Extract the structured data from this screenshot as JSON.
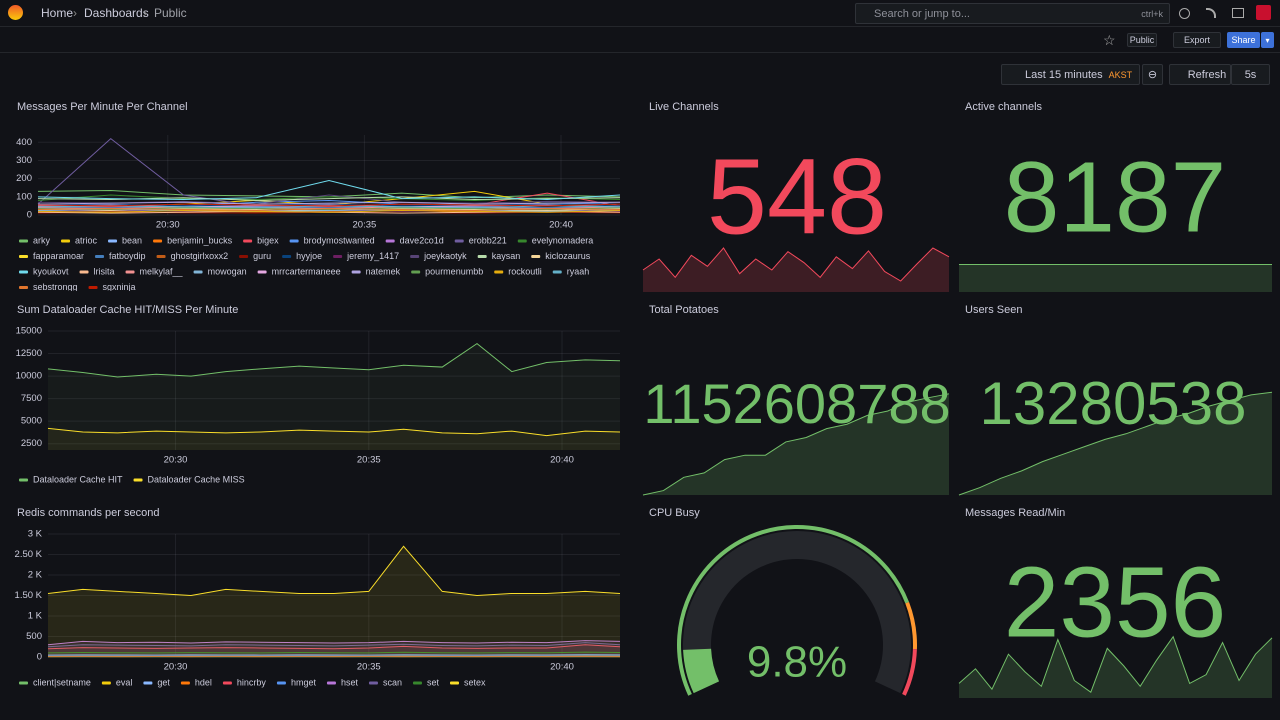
{
  "header": {
    "breadcrumbs": [
      "Home",
      "Dashboards",
      "Public"
    ],
    "search": "Search or jump to...",
    "shortcut": "ctrl+k"
  },
  "toolbar": {
    "public": "Public",
    "export": "Export",
    "share": "Share",
    "time_range": "Last 15 minutes",
    "timezone": "AKST",
    "refresh": "Refresh",
    "interval": "5s"
  },
  "panels": [
    {
      "type": "line",
      "title": "Messages Per Minute Per Channel",
      "x": [
        26.7,
        28.55,
        30.4,
        32.25,
        34.1,
        35.95,
        37.8,
        39.65,
        41.5
      ],
      "xlim": [
        26.7,
        41.5
      ],
      "xticks": [
        {
          "value": 30,
          "label": "20:30"
        },
        {
          "value": 35,
          "label": "20:35"
        },
        {
          "value": 40,
          "label": "20:40"
        }
      ],
      "ylim": [
        0,
        440
      ],
      "yticks": [
        0,
        100,
        200,
        300,
        400
      ],
      "fill_opacity": 0,
      "series": [
        {
          "name": "arky",
          "color": "#73bf69",
          "values": [
            130,
            135,
            110,
            105,
            100,
            120,
            95,
            110,
            100
          ]
        },
        {
          "name": "atrioc",
          "color": "#f2cc0c",
          "values": [
            40,
            45,
            60,
            80,
            55,
            90,
            130,
            60,
            50
          ]
        },
        {
          "name": "bean",
          "color": "#8ab8ff",
          "values": [
            20,
            25,
            30,
            25,
            20,
            30,
            25,
            20,
            30
          ]
        },
        {
          "name": "benjamin_bucks",
          "color": "#ff780a",
          "values": [
            30,
            35,
            40,
            30,
            60,
            45,
            30,
            40,
            35
          ]
        },
        {
          "name": "bigex",
          "color": "#f2495c",
          "values": [
            50,
            45,
            40,
            50,
            45,
            60,
            55,
            120,
            50
          ]
        },
        {
          "name": "brodymostwanted",
          "color": "#5794f2",
          "values": [
            60,
            55,
            50,
            70,
            80,
            60,
            55,
            65,
            60
          ]
        },
        {
          "name": "dave2co1d",
          "color": "#b877d9",
          "values": [
            35,
            40,
            30,
            45,
            35,
            40,
            45,
            35,
            40
          ]
        },
        {
          "name": "erobb221",
          "color": "#705da0",
          "values": [
            60,
            420,
            110,
            50,
            40,
            45,
            50,
            40,
            45
          ]
        },
        {
          "name": "evelynomadera",
          "color": "#37872d",
          "values": [
            80,
            110,
            90,
            85,
            100,
            90,
            80,
            95,
            85
          ]
        },
        {
          "name": "fapparamoar",
          "color": "#fade2a",
          "values": [
            25,
            30,
            20,
            25,
            35,
            25,
            30,
            20,
            25
          ]
        },
        {
          "name": "fatboydip",
          "color": "#447ebc",
          "values": [
            45,
            40,
            50,
            45,
            40,
            50,
            45,
            40,
            50
          ]
        },
        {
          "name": "ghostgirlxoxx2",
          "color": "#c15c17",
          "values": [
            15,
            20,
            25,
            15,
            20,
            25,
            15,
            20,
            25
          ]
        },
        {
          "name": "guru",
          "color": "#890f02",
          "values": [
            10,
            15,
            12,
            10,
            15,
            12,
            10,
            15,
            12
          ]
        },
        {
          "name": "hyyjoe",
          "color": "#0a437c",
          "values": [
            55,
            60,
            50,
            55,
            60,
            50,
            55,
            60,
            50
          ]
        },
        {
          "name": "jeremy_1417",
          "color": "#6d1f62",
          "values": [
            20,
            25,
            20,
            30,
            25,
            20,
            25,
            30,
            20
          ]
        },
        {
          "name": "joeykaotyk",
          "color": "#584477",
          "values": [
            70,
            65,
            75,
            60,
            110,
            70,
            65,
            75,
            70
          ]
        },
        {
          "name": "kaysan",
          "color": "#b7dbab",
          "values": [
            90,
            85,
            95,
            80,
            90,
            100,
            85,
            90,
            95
          ]
        },
        {
          "name": "kiclozaurus",
          "color": "#f4d598",
          "values": [
            30,
            25,
            35,
            30,
            25,
            35,
            30,
            25,
            35
          ]
        },
        {
          "name": "kyoukovt",
          "color": "#70dbed",
          "values": [
            100,
            90,
            85,
            95,
            190,
            90,
            100,
            85,
            110
          ]
        },
        {
          "name": "lrisita",
          "color": "#f9ba8f",
          "values": [
            15,
            10,
            15,
            20,
            15,
            10,
            15,
            20,
            15
          ]
        },
        {
          "name": "melkylaf__",
          "color": "#f29191",
          "values": [
            40,
            35,
            45,
            40,
            35,
            45,
            40,
            35,
            45
          ]
        },
        {
          "name": "mowogan",
          "color": "#82b5d8",
          "values": [
            25,
            30,
            25,
            20,
            25,
            30,
            25,
            20,
            25
          ]
        },
        {
          "name": "mrrcartermaneee",
          "color": "#e5a8e2",
          "values": [
            50,
            55,
            45,
            50,
            55,
            45,
            50,
            55,
            45
          ]
        },
        {
          "name": "natemek",
          "color": "#aea2e0",
          "values": [
            60,
            65,
            70,
            60,
            65,
            70,
            60,
            65,
            70
          ]
        },
        {
          "name": "pourmenumbb",
          "color": "#629e51",
          "values": [
            35,
            30,
            40,
            35,
            30,
            40,
            35,
            30,
            40
          ]
        },
        {
          "name": "rockoutli",
          "color": "#e5ac0e",
          "values": [
            20,
            15,
            25,
            20,
            15,
            25,
            20,
            15,
            25
          ]
        },
        {
          "name": "ryaah",
          "color": "#64b0c8",
          "values": [
            45,
            50,
            45,
            40,
            50,
            45,
            40,
            50,
            45
          ]
        },
        {
          "name": "sebstrongg",
          "color": "#e0752d",
          "values": [
            30,
            35,
            30,
            25,
            35,
            30,
            25,
            35,
            30
          ]
        },
        {
          "name": "sgxninja_",
          "color": "#bf1b00",
          "values": [
            55,
            50,
            60,
            55,
            50,
            60,
            55,
            50,
            60
          ]
        }
      ]
    },
    {
      "type": "stat",
      "title": "Live Channels",
      "value": 548,
      "color": "#f2495c",
      "sparkline": {
        "values": [
          530,
          545,
          520,
          550,
          535,
          560,
          525,
          545,
          530,
          555,
          540,
          520,
          548,
          532,
          556,
          528,
          515,
          538,
          560,
          548
        ],
        "ylim": [
          500,
          575
        ]
      }
    },
    {
      "type": "stat",
      "title": "Active channels",
      "value": 8187,
      "color": "#73bf69",
      "sparkline": {
        "values": [
          8187,
          8187,
          8187,
          8187,
          8187,
          8187,
          8187,
          8187,
          8187,
          8187,
          8187,
          8187,
          8187,
          8187,
          8187,
          8187,
          8187,
          8187,
          8187,
          8187
        ],
        "ylim": [
          8000,
          8374
        ]
      }
    },
    {
      "type": "line",
      "title": "Sum Dataloader Cache HIT/MISS Per Minute",
      "x": [
        26.7,
        27.6,
        28.5,
        29.5,
        30.4,
        31.3,
        32.2,
        33.2,
        34.1,
        35,
        35.9,
        36.9,
        37.8,
        38.7,
        39.6,
        40.6,
        41.5
      ],
      "xlim": [
        26.7,
        41.5
      ],
      "xticks": [
        {
          "value": 30,
          "label": "20:30"
        },
        {
          "value": 35,
          "label": "20:35"
        },
        {
          "value": 40,
          "label": "20:40"
        }
      ],
      "ylim": [
        1800,
        15000
      ],
      "yticks": [
        2500,
        5000,
        7500,
        10000,
        12500,
        15000
      ],
      "fill_opacity": 0.06,
      "series": [
        {
          "name": "Dataloader Cache HIT",
          "color": "#73bf69",
          "values": [
            10800,
            10400,
            9900,
            10200,
            10000,
            10500,
            10800,
            11100,
            10900,
            10700,
            11200,
            11000,
            13600,
            10500,
            11500,
            11800,
            11700
          ]
        },
        {
          "name": "Dataloader Cache MISS",
          "color": "#fade2a",
          "values": [
            4200,
            3800,
            3700,
            3900,
            3800,
            3700,
            3800,
            4000,
            3900,
            3800,
            4100,
            3700,
            3600,
            3900,
            3400,
            3900,
            3800
          ]
        }
      ]
    },
    {
      "type": "stat",
      "title": "Total Potatoes",
      "value": 1152608788,
      "color": "#73bf69",
      "sparkline": {
        "values": [
          1152380000,
          1152390000,
          1152420000,
          1152430000,
          1152460000,
          1152470000,
          1152470000,
          1152500000,
          1152510000,
          1152530000,
          1152540000,
          1152560000,
          1152570000,
          1152590000,
          1152600000,
          1152608788
        ],
        "ylim": [
          1152380000,
          1152640000
        ]
      }
    },
    {
      "type": "stat",
      "title": "Users Seen",
      "value": 13280538,
      "color": "#73bf69",
      "sparkline": {
        "values": [
          13275000,
          13275400,
          13275900,
          13276300,
          13276800,
          13277200,
          13277600,
          13278000,
          13278300,
          13278700,
          13279100,
          13279400,
          13279800,
          13280100,
          13280400,
          13280538
        ],
        "ylim": [
          13275000,
          13281200
        ]
      }
    },
    {
      "type": "line",
      "title": "Redis commands per second",
      "x": [
        26.7,
        27.6,
        28.5,
        29.5,
        30.4,
        31.3,
        32.2,
        33.2,
        34.1,
        35,
        35.9,
        36.9,
        37.8,
        38.7,
        39.6,
        40.6,
        41.5
      ],
      "xlim": [
        26.7,
        41.5
      ],
      "xticks": [
        {
          "value": 30,
          "label": "20:30"
        },
        {
          "value": 35,
          "label": "20:35"
        },
        {
          "value": 40,
          "label": "20:40"
        }
      ],
      "ylim": [
        0,
        3000
      ],
      "yticks": [
        0,
        500,
        {
          "value": 1000,
          "label": "1 K"
        },
        {
          "value": 1500,
          "label": "1.50 K"
        },
        {
          "value": 2000,
          "label": "2 K"
        },
        {
          "value": 2500,
          "label": "2.50 K"
        },
        {
          "value": 3000,
          "label": "3 K"
        }
      ],
      "fill_opacity": 0.1,
      "series": [
        {
          "name": "client|setname",
          "color": "#73bf69",
          "values": [
            5,
            5,
            6,
            5,
            5,
            6,
            5,
            5,
            5,
            6,
            5,
            5,
            6,
            5,
            5,
            6,
            5
          ]
        },
        {
          "name": "eval",
          "color": "#f2cc0c",
          "values": [
            20,
            22,
            20,
            21,
            20,
            22,
            20,
            21,
            20,
            22,
            20,
            21,
            20,
            22,
            20,
            21,
            20
          ]
        },
        {
          "name": "get",
          "color": "#8ab8ff",
          "values": [
            50,
            55,
            52,
            50,
            54,
            52,
            50,
            55,
            52,
            50,
            58,
            52,
            50,
            54,
            52,
            60,
            55
          ]
        },
        {
          "name": "hdel",
          "color": "#ff780a",
          "values": [
            10,
            12,
            10,
            11,
            10,
            12,
            10,
            11,
            10,
            12,
            10,
            11,
            10,
            12,
            10,
            11,
            10
          ]
        },
        {
          "name": "hincrby",
          "color": "#f2495c",
          "values": [
            200,
            230,
            220,
            210,
            220,
            230,
            220,
            210,
            200,
            220,
            260,
            220,
            210,
            220,
            220,
            300,
            250
          ]
        },
        {
          "name": "hmget",
          "color": "#5794f2",
          "values": [
            40,
            42,
            40,
            41,
            40,
            42,
            40,
            41,
            40,
            42,
            45,
            41,
            40,
            42,
            40,
            48,
            42
          ]
        },
        {
          "name": "hset",
          "color": "#b877d9",
          "values": [
            300,
            380,
            350,
            360,
            340,
            370,
            360,
            350,
            340,
            350,
            380,
            350,
            340,
            360,
            350,
            400,
            380
          ]
        },
        {
          "name": "scan",
          "color": "#705da0",
          "values": [
            250,
            300,
            290,
            280,
            270,
            300,
            290,
            280,
            270,
            290,
            310,
            280,
            270,
            290,
            280,
            350,
            300
          ]
        },
        {
          "name": "set",
          "color": "#37872d",
          "values": [
            100,
            110,
            105,
            100,
            108,
            105,
            100,
            110,
            105,
            100,
            115,
            105,
            100,
            108,
            105,
            120,
            110
          ]
        },
        {
          "name": "setex",
          "color": "#fade2a",
          "values": [
            1550,
            1650,
            1600,
            1550,
            1500,
            1650,
            1600,
            1550,
            1550,
            1600,
            2700,
            1600,
            1500,
            1550,
            1550,
            1600,
            1550
          ]
        }
      ]
    },
    {
      "type": "gauge",
      "title": "CPU Busy",
      "value": 9.8,
      "value_label": "9.8%",
      "min": 0,
      "max": 100,
      "color": "#73bf69",
      "thresholds": [
        {
          "value": 80,
          "color": "#ff9830"
        },
        {
          "value": 90,
          "color": "#f2495c"
        }
      ]
    },
    {
      "type": "stat",
      "title": "Messages Read/Min",
      "value": 2356,
      "color": "#73bf69",
      "sparkline": {
        "values": [
          2200,
          2250,
          2180,
          2300,
          2240,
          2190,
          2350,
          2210,
          2170,
          2320,
          2260,
          2190,
          2280,
          2360,
          2200,
          2230,
          2340,
          2210,
          2300,
          2356
        ],
        "ylim": [
          2150,
          2400
        ]
      }
    }
  ]
}
